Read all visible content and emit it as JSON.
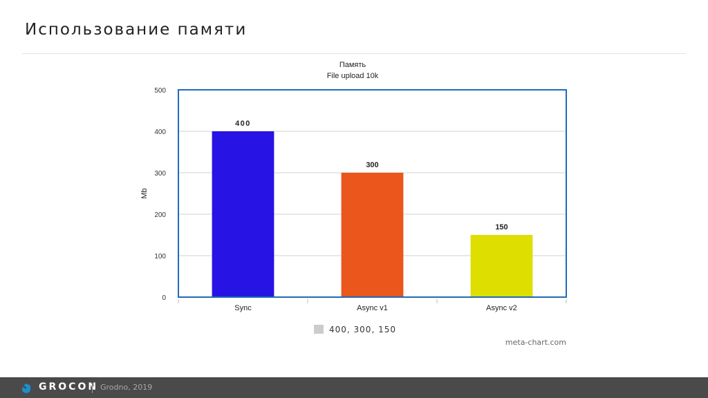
{
  "slide": {
    "title": "Использование памяти"
  },
  "chart_data": {
    "type": "bar",
    "title": "Память",
    "subtitle": "File upload 10k",
    "ylabel": "Mb",
    "xlabel": "",
    "categories": [
      "Sync",
      "Async v1",
      "Async v2"
    ],
    "values": [
      400,
      300,
      150
    ],
    "data_labels": [
      "400",
      "300",
      "150"
    ],
    "bar_colors": [
      "#2713e3",
      "#ea561b",
      "#dede00"
    ],
    "ylim": [
      0,
      500
    ],
    "yticks": [
      0,
      100,
      200,
      300,
      400,
      500
    ],
    "grid": true,
    "frame_color": "#1f6ab8",
    "legend": {
      "entries": [
        "400, 300, 150"
      ],
      "placement": "bottom",
      "swatch_color": "#cccccc"
    },
    "credit": "meta-chart.com"
  },
  "footer": {
    "brand": "GROCON",
    "place": "Grodno, 2019",
    "brand_icon": "grocon-logo-icon",
    "brand_color": "#1b8fd0",
    "background": "#4a4a4a"
  }
}
